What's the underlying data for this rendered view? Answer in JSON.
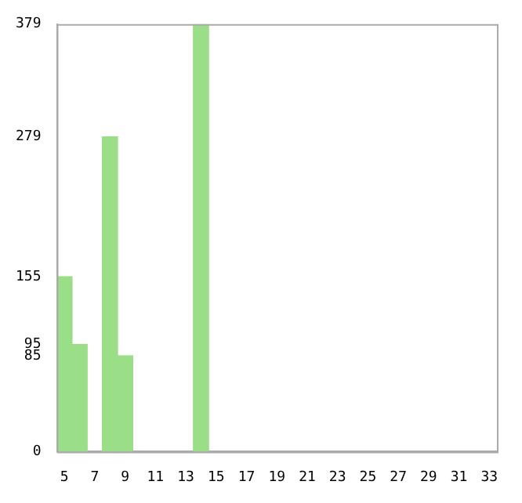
{
  "chart_data": {
    "type": "bar",
    "categories": [
      "5",
      null,
      "7",
      null,
      "9",
      null,
      "11",
      null,
      "13",
      null,
      "15",
      null,
      "17",
      null,
      "19",
      null,
      "21",
      null,
      "23",
      null,
      "25",
      null,
      "27",
      null,
      "29",
      null,
      "31",
      null,
      "33"
    ],
    "values": [
      155,
      95,
      0,
      279,
      85,
      0,
      0,
      0,
      0,
      379,
      0,
      0,
      0,
      0,
      0,
      0,
      0,
      0,
      0,
      0,
      0,
      0,
      0,
      0,
      0,
      0,
      0,
      0,
      0
    ],
    "color": "#9bde88",
    "ylim": [
      0,
      379
    ],
    "yticks": [
      0,
      85,
      95,
      155,
      279,
      379
    ],
    "grid": false,
    "legend": false
  }
}
